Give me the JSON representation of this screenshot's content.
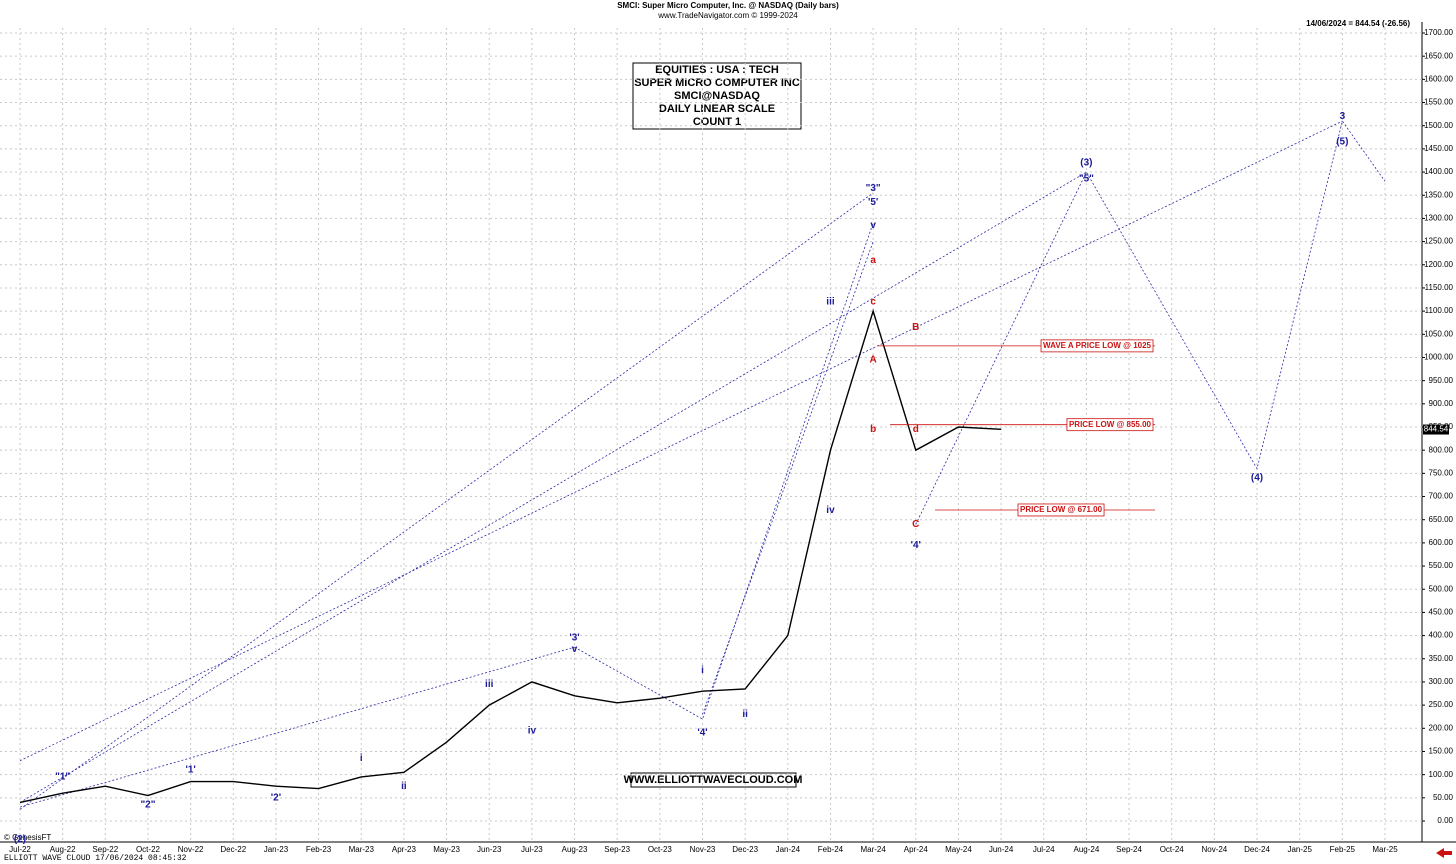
{
  "chart_data": {
    "type": "line",
    "title": "SMCI:  Super Micro Computer, Inc. @ NASDAQ  (Daily bars)",
    "subtitle": "www.TradeNavigator.com © 1999-2024",
    "last_quote": "14/06/2024 = 844.54 (-26.56)",
    "info_box": [
      "EQUITIES : USA : TECH",
      "SUPER MICRO COMPUTER INC",
      "SMCI@NASDAQ",
      "DAILY LINEAR SCALE",
      "COUNT 1"
    ],
    "watermark": "WWW.ELLIOTTWAVECLOUD.COM",
    "copyright": "© GenesisFT",
    "footer": "ELLIOTT WAVE CLOUD   17/06/2024 08:45:32",
    "last_price": {
      "value": 844.54,
      "label": "844.54"
    },
    "categories": [
      "Jul-22",
      "Aug-22",
      "Sep-22",
      "Oct-22",
      "Nov-22",
      "Dec-22",
      "Jan-23",
      "Feb-23",
      "Mar-23",
      "Apr-23",
      "May-23",
      "Jun-23",
      "Jul-23",
      "Aug-23",
      "Sep-23",
      "Oct-23",
      "Nov-23",
      "Dec-23",
      "Jan-24",
      "Feb-24",
      "Mar-24",
      "Apr-24",
      "May-24",
      "Jun-24",
      "Jul-24",
      "Aug-24",
      "Sep-24",
      "Oct-24",
      "Nov-24",
      "Dec-24",
      "Jan-25",
      "Feb-25",
      "Mar-25"
    ],
    "series": [
      {
        "name": "SMCI",
        "color": "#000000",
        "values": [
          40,
          60,
          75,
          55,
          85,
          85,
          75,
          70,
          95,
          105,
          170,
          250,
          300,
          270,
          255,
          265,
          280,
          285,
          400,
          800,
          1100,
          800,
          850,
          845,
          null,
          null,
          null,
          null,
          null,
          null,
          null,
          null,
          null
        ]
      }
    ],
    "paths": [
      {
        "x": [
          "Apr-24",
          "Aug-24",
          "Dec-24",
          "Feb-25",
          "Mar-25"
        ],
        "y": [
          640,
          1400,
          760,
          1510,
          1380
        ]
      },
      {
        "x": [
          "Jul-22",
          "Mar-24"
        ],
        "y": [
          25,
          1355
        ]
      },
      {
        "x": [
          "Jul-22",
          "Feb-25"
        ],
        "y": [
          130,
          1510
        ]
      },
      {
        "x": [
          "Jul-22",
          "Aug-24"
        ],
        "y": [
          40,
          1400
        ]
      },
      {
        "x": [
          "Jul-22",
          "Aug-23"
        ],
        "y": [
          30,
          375
        ]
      },
      {
        "x": [
          "Aug-23",
          "Nov-23",
          "Mar-24"
        ],
        "y": [
          375,
          220,
          1290
        ]
      },
      {
        "x": [
          "Nov-23",
          "Mar-24"
        ],
        "y": [
          230,
          1250
        ]
      }
    ],
    "path_color": "#2a2aa8",
    "annotations": [
      {
        "text": "(2)",
        "x": "Jul-22",
        "y": -40,
        "color": "#1a1a9a"
      },
      {
        "text": "\"1\"",
        "x": "Aug-22",
        "y": 95,
        "color": "#1a1a9a"
      },
      {
        "text": "\"2\"",
        "x": "Oct-22",
        "y": 35,
        "color": "#1a1a9a"
      },
      {
        "text": "'1'",
        "x": "Nov-22",
        "y": 110,
        "color": "#1a1a9a"
      },
      {
        "text": "'2'",
        "x": "Jan-23",
        "y": 50,
        "color": "#1a1a9a"
      },
      {
        "text": "i",
        "x": "Mar-23",
        "y": 135,
        "color": "#1a1a9a"
      },
      {
        "text": "ii",
        "x": "Apr-23",
        "y": 75,
        "color": "#1a1a9a"
      },
      {
        "text": "iii",
        "x": "Jun-23",
        "y": 295,
        "color": "#1a1a9a"
      },
      {
        "text": "iv",
        "x": "Jul-23",
        "y": 195,
        "color": "#1a1a9a"
      },
      {
        "text": "'3'",
        "x": "Aug-23",
        "y": 395,
        "color": "#1a1a9a"
      },
      {
        "text": "v",
        "x": "Aug-23",
        "y": 370,
        "color": "#1a1a9a"
      },
      {
        "text": "'4'",
        "x": "Nov-23",
        "y": 190,
        "color": "#1a1a9a"
      },
      {
        "text": "i",
        "x": "Nov-23",
        "y": 325,
        "color": "#1a1a9a"
      },
      {
        "text": "ii",
        "x": "Dec-23",
        "y": 230,
        "color": "#1a1a9a"
      },
      {
        "text": "iii",
        "x": "Feb-24",
        "y": 1120,
        "color": "#1a1a9a"
      },
      {
        "text": "iv",
        "x": "Feb-24",
        "y": 670,
        "color": "#1a1a9a"
      },
      {
        "text": "\"3\"",
        "x": "Mar-24",
        "y": 1365,
        "color": "#1a1a9a"
      },
      {
        "text": "'5'",
        "x": "Mar-24",
        "y": 1335,
        "color": "#1a1a9a"
      },
      {
        "text": "v",
        "x": "Mar-24",
        "y": 1285,
        "color": "#1a1a9a"
      },
      {
        "text": "a",
        "x": "Mar-24",
        "y": 1210,
        "color": "#cc1111"
      },
      {
        "text": "A",
        "x": "Mar-24",
        "y": 995,
        "color": "#cc1111"
      },
      {
        "text": "b",
        "x": "Mar-24",
        "y": 845,
        "color": "#cc1111"
      },
      {
        "text": "c",
        "x": "Mar-24",
        "y": 1120,
        "color": "#cc1111"
      },
      {
        "text": "B",
        "x": "Apr-24",
        "y": 1065,
        "color": "#cc1111"
      },
      {
        "text": "d",
        "x": "Apr-24",
        "y": 845,
        "color": "#cc1111"
      },
      {
        "text": "C",
        "x": "Apr-24",
        "y": 640,
        "color": "#cc1111"
      },
      {
        "text": "'4'",
        "x": "Apr-24",
        "y": 595,
        "color": "#1a1a9a"
      },
      {
        "text": "(3)",
        "x": "Aug-24",
        "y": 1420,
        "color": "#1a1a9a"
      },
      {
        "text": "\"5\"",
        "x": "Aug-24",
        "y": 1385,
        "color": "#1a1a9a"
      },
      {
        "text": "(4)",
        "x": "Dec-24",
        "y": 740,
        "color": "#1a1a9a"
      },
      {
        "text": "3",
        "x": "Feb-25",
        "y": 1520,
        "color": "#1a1a9a"
      },
      {
        "text": "(5)",
        "x": "Feb-25",
        "y": 1465,
        "color": "#1a1a9a"
      }
    ],
    "price_callouts": [
      {
        "text": "WAVE A PRICE LOW @ 1025",
        "y": 1025
      },
      {
        "text": "PRICE LOW @ 855.00",
        "y": 855
      },
      {
        "text": "PRICE LOW @ 671.00",
        "y": 671
      }
    ],
    "callout_color": "#cc1111",
    "grid": true,
    "ylim": [
      0,
      1700
    ],
    "yticks": [
      {
        "value": 0,
        "label": "0.00"
      },
      {
        "value": 50,
        "label": "50.00"
      },
      {
        "value": 100,
        "label": "100.00"
      },
      {
        "value": 150,
        "label": "150.00"
      },
      {
        "value": 200,
        "label": "200.00"
      },
      {
        "value": 250,
        "label": "250.00"
      },
      {
        "value": 300,
        "label": "300.00"
      },
      {
        "value": 350,
        "label": "350.00"
      },
      {
        "value": 400,
        "label": "400.00"
      },
      {
        "value": 450,
        "label": "450.00"
      },
      {
        "value": 500,
        "label": "500.00"
      },
      {
        "value": 550,
        "label": "550.00"
      },
      {
        "value": 600,
        "label": "600.00"
      },
      {
        "value": 650,
        "label": "650.00"
      },
      {
        "value": 700,
        "label": "700.00"
      },
      {
        "value": 750,
        "label": "750.00"
      },
      {
        "value": 800,
        "label": "800.00"
      },
      {
        "value": 850,
        "label": "850.00"
      },
      {
        "value": 900,
        "label": "900.00"
      },
      {
        "value": 950,
        "label": "950.00"
      },
      {
        "value": 1000,
        "label": "1000.00"
      },
      {
        "value": 1050,
        "label": "1050.00"
      },
      {
        "value": 1100,
        "label": "1100.00"
      },
      {
        "value": 1150,
        "label": "1150.00"
      },
      {
        "value": 1200,
        "label": "1200.00"
      },
      {
        "value": 1250,
        "label": "1250.00"
      },
      {
        "value": 1300,
        "label": "1300.00"
      },
      {
        "value": 1350,
        "label": "1350.00"
      },
      {
        "value": 1400,
        "label": "1400.00"
      },
      {
        "value": 1450,
        "label": "1450.00"
      },
      {
        "value": 1500,
        "label": "1500.00"
      },
      {
        "value": 1550,
        "label": "1550.00"
      },
      {
        "value": 1600,
        "label": "1600.00"
      },
      {
        "value": 1650,
        "label": "1650.00"
      },
      {
        "value": 1700,
        "label": "1700.00"
      }
    ]
  }
}
